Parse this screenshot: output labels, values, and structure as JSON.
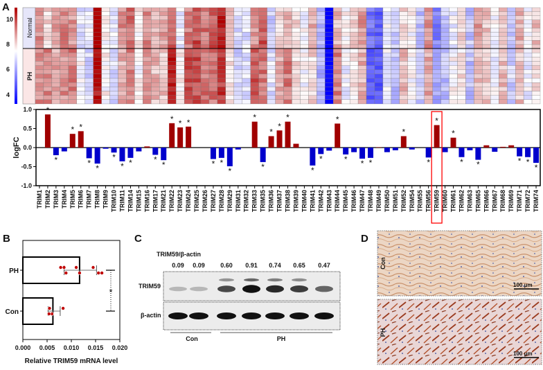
{
  "panels": {
    "a": "A",
    "b": "B",
    "c": "C",
    "d": "D"
  },
  "colors": {
    "high": "#b00000",
    "low": "#0000ff",
    "mid": "#ffffff",
    "up_bar": "#a00000",
    "down_bar": "#0000cc",
    "highlight": "#ff0000",
    "dot": "#c00000"
  },
  "chart_data": [
    {
      "type": "heatmap",
      "groups": [
        "Normal",
        "PH"
      ],
      "colorbar_ticks": [
        "10",
        "8",
        "6",
        "4"
      ],
      "colorbar_range": [
        3.3,
        10.9
      ],
      "rows_per_group": [
        10,
        13
      ],
      "column_base_expression": [
        9,
        8.5,
        8.7,
        9,
        9,
        7.3,
        7,
        10.8,
        7.6,
        7,
        8.8,
        9.2,
        7.6,
        9,
        8.5,
        8.5,
        10,
        7.5,
        9.5,
        9.8,
        9.3,
        9.5,
        10.2,
        8.3,
        6.8,
        7,
        9.3,
        9.5,
        6.8,
        8.3,
        8.8,
        8,
        7.4,
        8.3,
        6.3,
        3.2,
        8.8,
        7.4,
        7.9,
        8.7,
        5,
        4.8,
        7.3,
        6.5,
        8.2,
        7.5,
        6.5,
        8.8,
        5.8,
        6.5,
        7.4,
        8,
        6.5,
        8.6,
        8.2,
        7.3,
        8.3,
        6.7,
        8.4,
        7.4,
        8
      ]
    },
    {
      "type": "bar",
      "ylabel": "logFC",
      "ylim": [
        -1.0,
        1.0
      ],
      "yticks": [
        "1.0",
        "0.5",
        "0.0",
        "-0.5",
        "-1.0"
      ],
      "highlight": "TRIM59",
      "categories": [
        "TRIM1",
        "TRIM2",
        "TRIM3",
        "TRIM4",
        "TRIM5",
        "TRIM6",
        "TRIM7",
        "TRIM8",
        "TRIM9",
        "TRIM10",
        "TRIM11",
        "TRIM14",
        "TRIM15",
        "TRIM16",
        "TRIM17",
        "TRIM21",
        "TRIM22",
        "TRIM23",
        "TRIM24",
        "TRIM25",
        "TRIM26",
        "TRIM27",
        "TRIM28",
        "TRIM29",
        "TRIM31",
        "TRIM32",
        "TRIM33",
        "TRIM35",
        "TRIM36",
        "TRIM37",
        "TRIM38",
        "TRIM39",
        "TRIM40",
        "TRIM41",
        "TRIM42",
        "TRIM43",
        "TRIM44",
        "TRIM45",
        "TRIM46",
        "TRIM47",
        "TRIM48",
        "TRIM49",
        "TRIM50",
        "TRIM51",
        "TRIM52",
        "TRIM54",
        "TRIM55",
        "TRIM56",
        "TRIM59",
        "TRIM60",
        "TRIM61",
        "TRIM62",
        "TRIM63",
        "TRIM65",
        "TRIM66",
        "TRIM67",
        "TRIM68",
        "TRIM69",
        "TRIM71",
        "TRIM72",
        "TRIM74"
      ],
      "values": [
        0,
        0.87,
        -0.2,
        -0.1,
        0.36,
        0.43,
        -0.28,
        -0.42,
        -0.03,
        -0.13,
        -0.36,
        -0.27,
        -0.1,
        0.03,
        -0.19,
        -0.33,
        0.64,
        0.53,
        0.55,
        0,
        0,
        -0.3,
        -0.27,
        -0.49,
        -0.05,
        0,
        0.68,
        -0.38,
        0.3,
        0.45,
        0.68,
        0.1,
        0,
        -0.47,
        -0.17,
        -0.08,
        0.63,
        -0.18,
        -0.12,
        -0.29,
        -0.27,
        0.01,
        -0.12,
        -0.07,
        0.3,
        -0.05,
        0,
        -0.26,
        0.59,
        -0.12,
        0.26,
        -0.25,
        -0.07,
        -0.32,
        0.06,
        -0.11,
        0.02,
        0.06,
        -0.23,
        -0.25,
        -0.4
      ],
      "significant": [
        0,
        1,
        1,
        0,
        1,
        1,
        1,
        1,
        0,
        1,
        1,
        1,
        0,
        0,
        1,
        1,
        1,
        1,
        1,
        0,
        0,
        1,
        1,
        1,
        0,
        0,
        1,
        1,
        1,
        1,
        1,
        0,
        0,
        1,
        1,
        0,
        1,
        1,
        0,
        1,
        1,
        0,
        0,
        0,
        1,
        0,
        0,
        1,
        1,
        0,
        1,
        1,
        0,
        1,
        0,
        0,
        0,
        0,
        1,
        1,
        1
      ],
      "sig_mark": "*"
    },
    {
      "type": "bar",
      "orientation": "horizontal",
      "xlabel": "Relative TRIM59 mRNA level",
      "xlim": [
        0,
        0.02
      ],
      "xticks": [
        "0.000",
        "0.005",
        "0.010",
        "0.015",
        "0.020"
      ],
      "categories": [
        "PH",
        "Con"
      ],
      "values": [
        0.0117,
        0.0062
      ],
      "error_low": [
        0.0085,
        0.0052
      ],
      "error_high": [
        0.0152,
        0.0077
      ],
      "points": [
        [
          0.0085,
          0.0117,
          0.0145,
          0.0163,
          0.0078,
          0.0089,
          0.011,
          0.0156
        ],
        [
          0.0055,
          0.006,
          0.0083,
          0.0054
        ]
      ],
      "significance": "*"
    },
    {
      "type": "table",
      "title": "TRIM59/β-actin",
      "ratios": [
        "0.09",
        "0.09",
        "0.60",
        "0.91",
        "0.74",
        "0.65",
        "0.47"
      ],
      "bands": [
        "TRIM59",
        "β-actin"
      ],
      "groups": [
        "Con",
        "PH"
      ]
    }
  ],
  "histology": {
    "labels": [
      "Con",
      "PH"
    ],
    "scale_bar": "100 μm"
  }
}
